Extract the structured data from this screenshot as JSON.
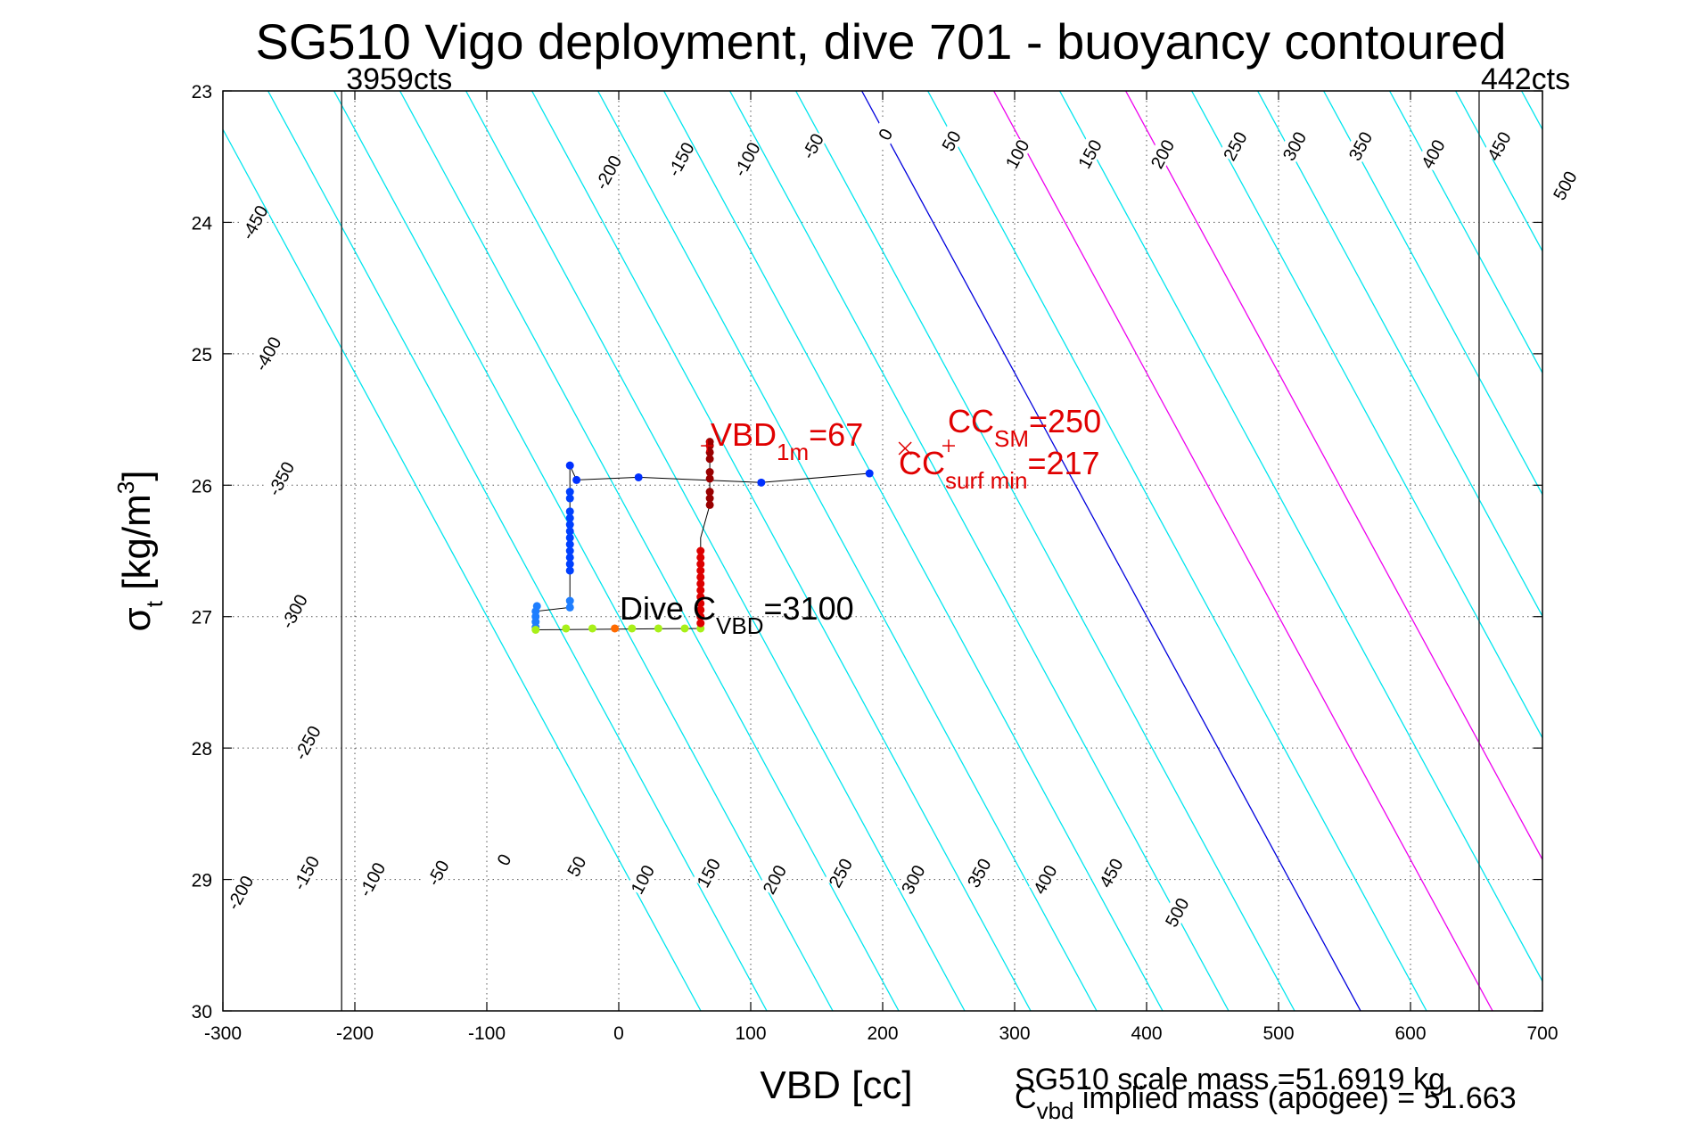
{
  "title": "SG510 Vigo deployment, dive 701 - buoyancy contoured",
  "axes": {
    "xlabel": "VBD [cc]",
    "ylabel_main": "σ",
    "ylabel_sub": "t",
    "ylabel_unit_start": " [kg/m",
    "ylabel_unit_sup": "3",
    "ylabel_unit_end": "]"
  },
  "footer": {
    "scale_mass": "SG510 scale mass =51.6919 kg",
    "implied_mass_main": "C",
    "implied_mass_sub": "vbd",
    "implied_mass_rest": " implied mass (apogee) = 51.663"
  },
  "annotations": {
    "vbd_1m": {
      "main": "VBD",
      "sub": "1m",
      "rest": "=67"
    },
    "cc_sm": {
      "main": "CC",
      "sub": "SM",
      "rest": "=250"
    },
    "cc_surf_min": {
      "main": "CC",
      "sub": "surf min",
      "rest": "=217"
    },
    "dive_cvbd": {
      "main": "Dive C",
      "sub": "VBD",
      "rest": "=3100"
    }
  },
  "cts_lines": [
    {
      "label": "3959cts",
      "vbd": -210
    },
    {
      "label": "442cts",
      "vbd": 652
    }
  ],
  "chart_data": {
    "type": "line",
    "xlim": [
      -300,
      700
    ],
    "ylim": [
      23,
      30
    ],
    "y_reversed": true,
    "xticks": [
      -300,
      -200,
      -100,
      0,
      100,
      200,
      300,
      400,
      500,
      600,
      700
    ],
    "yticks": [
      23,
      24,
      25,
      26,
      27,
      28,
      29,
      30
    ],
    "grid": true,
    "contours": {
      "levels": [
        -500,
        -450,
        -400,
        -350,
        -300,
        -250,
        -200,
        -150,
        -100,
        -50,
        0,
        50,
        100,
        150,
        200,
        250,
        300,
        350,
        400,
        450,
        500
      ],
      "colors": {
        "default": "#00e5ee",
        "zero": "#0000dd",
        "highlight": "#ee00ee"
      },
      "highlight_levels": [
        100,
        200
      ],
      "top_labels": [
        {
          "level": -450,
          "vbd": -276,
          "sigma": 24.0
        },
        {
          "level": -400,
          "vbd": -266,
          "sigma": 25.0
        },
        {
          "level": -350,
          "vbd": -256,
          "sigma": 25.95
        },
        {
          "level": -300,
          "vbd": -246,
          "sigma": 26.96
        },
        {
          "level": -250,
          "vbd": -236,
          "sigma": 27.96
        },
        {
          "level": -200,
          "vbd": -8,
          "sigma": 23.62
        },
        {
          "level": -150,
          "vbd": 47,
          "sigma": 23.52
        },
        {
          "level": -100,
          "vbd": 97,
          "sigma": 23.52
        },
        {
          "level": -50,
          "vbd": 147,
          "sigma": 23.42
        },
        {
          "level": 0,
          "vbd": 202,
          "sigma": 23.33
        },
        {
          "level": 50,
          "vbd": 252,
          "sigma": 23.38
        },
        {
          "level": 100,
          "vbd": 302,
          "sigma": 23.48
        },
        {
          "level": 150,
          "vbd": 357,
          "sigma": 23.48
        },
        {
          "level": 200,
          "vbd": 412,
          "sigma": 23.48
        },
        {
          "level": 250,
          "vbd": 467,
          "sigma": 23.42
        },
        {
          "level": 300,
          "vbd": 512,
          "sigma": 23.42
        },
        {
          "level": 350,
          "vbd": 562,
          "sigma": 23.42
        },
        {
          "level": 400,
          "vbd": 617,
          "sigma": 23.48
        },
        {
          "level": 450,
          "vbd": 667,
          "sigma": 23.42
        },
        {
          "level": 500,
          "vbd": 717,
          "sigma": 23.72
        }
      ],
      "bottom_labels": [
        {
          "level": -200,
          "vbd": -287,
          "sigma": 29.1
        },
        {
          "level": -150,
          "vbd": -237,
          "sigma": 28.95
        },
        {
          "level": -100,
          "vbd": -187,
          "sigma": 29.0
        },
        {
          "level": -50,
          "vbd": -137,
          "sigma": 28.95
        },
        {
          "level": 0,
          "vbd": -87,
          "sigma": 28.85
        },
        {
          "level": 50,
          "vbd": -32,
          "sigma": 28.9
        },
        {
          "level": 100,
          "vbd": 18,
          "sigma": 29.0
        },
        {
          "level": 150,
          "vbd": 68,
          "sigma": 28.95
        },
        {
          "level": 200,
          "vbd": 118,
          "sigma": 29.0
        },
        {
          "level": 250,
          "vbd": 168,
          "sigma": 28.95
        },
        {
          "level": 300,
          "vbd": 223,
          "sigma": 29.0
        },
        {
          "level": 350,
          "vbd": 273,
          "sigma": 28.95
        },
        {
          "level": 400,
          "vbd": 323,
          "sigma": 29.0
        },
        {
          "level": 450,
          "vbd": 373,
          "sigma": 28.95
        },
        {
          "level": 500,
          "vbd": 423,
          "sigma": 29.25
        }
      ]
    },
    "series": [
      {
        "points": [
          [
            190,
            25.91
          ],
          [
            108,
            25.98
          ],
          [
            15,
            25.94
          ],
          [
            -32,
            25.96
          ],
          [
            -37,
            25.85
          ]
        ],
        "color": "#0030ff"
      },
      {
        "points": [
          [
            -37,
            26.05
          ],
          [
            -37,
            26.1
          ],
          [
            -37,
            26.2
          ],
          [
            -37,
            26.25
          ],
          [
            -37,
            26.3
          ],
          [
            -37,
            26.35
          ],
          [
            -37,
            26.4
          ],
          [
            -37,
            26.45
          ],
          [
            -37,
            26.5
          ],
          [
            -37,
            26.55
          ],
          [
            -37,
            26.6
          ],
          [
            -37,
            26.65
          ]
        ],
        "color": "#0040ff"
      },
      {
        "points": [
          [
            -37,
            26.88
          ],
          [
            -37,
            26.93
          ],
          [
            -62,
            26.92
          ],
          [
            -63,
            26.96
          ],
          [
            -63,
            27.0
          ],
          [
            -63,
            27.04
          ],
          [
            -63,
            27.08
          ]
        ],
        "color": "#1e7eff"
      },
      {
        "points": [
          [
            -63,
            27.1
          ],
          [
            -40,
            27.09
          ],
          [
            -20,
            27.09
          ],
          [
            10,
            27.09
          ],
          [
            30,
            27.09
          ],
          [
            50,
            27.09
          ],
          [
            62,
            27.09
          ]
        ],
        "color": "#a8f018"
      },
      {
        "points": [
          [
            -3,
            27.09
          ]
        ],
        "color": "#ff6a00"
      },
      {
        "points": [
          [
            62,
            27.05
          ],
          [
            62,
            27.0
          ],
          [
            62,
            26.95
          ],
          [
            62,
            26.9
          ],
          [
            62,
            26.85
          ],
          [
            62,
            26.8
          ],
          [
            62,
            26.75
          ],
          [
            62,
            26.7
          ],
          [
            62,
            26.65
          ],
          [
            62,
            26.6
          ],
          [
            62,
            26.55
          ],
          [
            62,
            26.5
          ]
        ],
        "color": "#dd0000"
      },
      {
        "points": [
          [
            69,
            26.15
          ],
          [
            69,
            26.1
          ],
          [
            69,
            26.05
          ],
          [
            69,
            25.95
          ],
          [
            69,
            25.9
          ],
          [
            69,
            25.8
          ],
          [
            69,
            25.75
          ],
          [
            69,
            25.7
          ],
          [
            69,
            25.67
          ]
        ],
        "color": "#990000"
      }
    ],
    "track_path": [
      [
        190,
        25.91
      ],
      [
        108,
        25.98
      ],
      [
        15,
        25.94
      ],
      [
        -32,
        25.96
      ],
      [
        -37,
        25.85
      ],
      [
        -37,
        26.93
      ],
      [
        -63,
        26.96
      ],
      [
        -63,
        27.1
      ],
      [
        62,
        27.09
      ],
      [
        62,
        26.4
      ],
      [
        69,
        26.15
      ],
      [
        69,
        25.67
      ]
    ],
    "markers": [
      {
        "vbd": 67,
        "sigma": 25.7,
        "symbol": "+",
        "color": "#e00000"
      },
      {
        "vbd": 217,
        "sigma": 25.72,
        "symbol": "x",
        "color": "#e00000"
      },
      {
        "vbd": 250,
        "sigma": 25.7,
        "symbol": "+",
        "color": "#e00000"
      }
    ]
  }
}
